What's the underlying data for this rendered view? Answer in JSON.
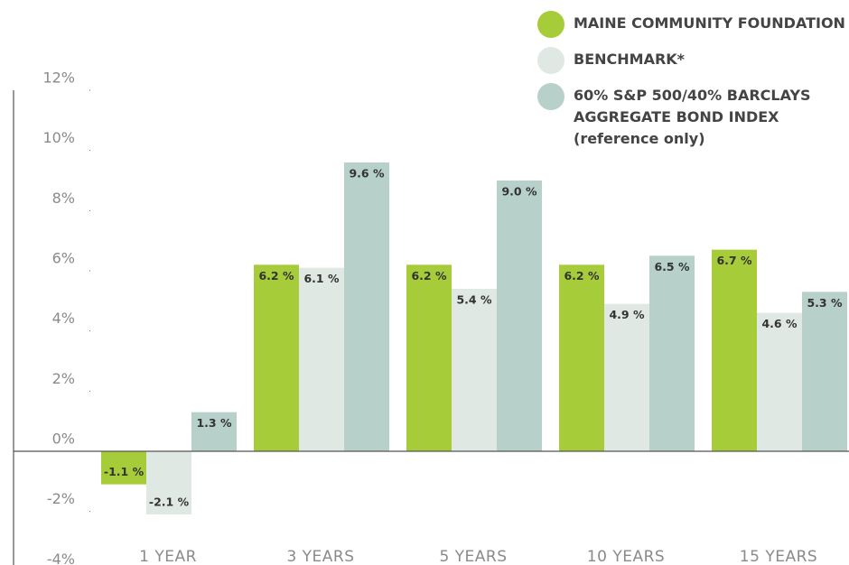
{
  "chart_data": {
    "type": "bar",
    "categories": [
      "1 YEAR",
      "3 YEARS",
      "5 YEARS",
      "10 YEARS",
      "15 YEARS"
    ],
    "series": [
      {
        "name": "MAINE COMMUNITY FOUNDATION",
        "color": "#a6cd39",
        "values": [
          -1.1,
          6.2,
          6.2,
          6.2,
          6.7
        ],
        "value_labels": [
          "-1.1 %",
          "6.2 %",
          "6.2 %",
          "6.2 %",
          "6.7 %"
        ]
      },
      {
        "name": "BENCHMARK*",
        "color": "#dfe8e3",
        "values": [
          -2.1,
          6.1,
          5.4,
          4.9,
          4.6
        ],
        "value_labels": [
          "-2.1 %",
          "6.1 %",
          "5.4 %",
          "4.9 %",
          "4.6 %"
        ]
      },
      {
        "name": "60% S&P 500/40% BARCLAYS AGGREGATE BOND INDEX",
        "color": "#b7d0ca",
        "values": [
          1.3,
          9.6,
          9.0,
          6.5,
          5.3
        ],
        "value_labels": [
          "1.3 %",
          "9.6 %",
          "9.0 %",
          "6.5 %",
          "5.3 %"
        ]
      }
    ],
    "legend_note": "(reference only)",
    "ylim": [
      -4,
      12
    ],
    "yticks": [
      {
        "value": -4,
        "label": "-4%"
      },
      {
        "value": -2,
        "label": "-2%"
      },
      {
        "value": 0,
        "label": "0%"
      },
      {
        "value": 2,
        "label": "2%"
      },
      {
        "value": 4,
        "label": "4%"
      },
      {
        "value": 6,
        "label": "6%"
      },
      {
        "value": 8,
        "label": "8%"
      },
      {
        "value": 10,
        "label": "10%"
      },
      {
        "value": 12,
        "label": "12%"
      }
    ],
    "legend": "top-right"
  }
}
